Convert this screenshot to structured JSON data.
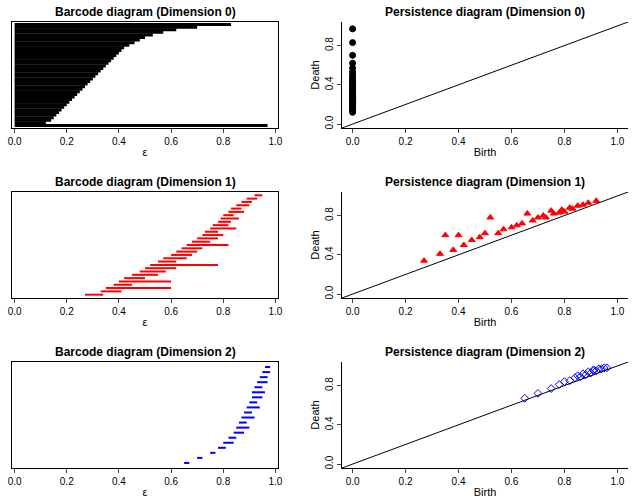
{
  "chart_data": [
    {
      "type": "barcode",
      "title": "Barcode diagram (Dimension 0)",
      "x_label": "ε",
      "color": "#000000",
      "tick_labels": "x",
      "x": [
        0,
        0,
        0,
        0,
        0,
        0,
        0,
        0,
        0,
        0,
        0,
        0,
        0,
        0,
        0,
        0,
        0,
        0,
        0,
        0,
        0,
        0,
        0,
        0,
        0,
        0,
        0,
        0,
        0,
        0,
        0,
        0,
        0,
        0,
        0,
        0,
        0,
        0,
        0,
        0
      ],
      "values": [
        0.97,
        0.12,
        0.14,
        0.15,
        0.16,
        0.17,
        0.18,
        0.19,
        0.2,
        0.21,
        0.22,
        0.23,
        0.24,
        0.25,
        0.26,
        0.27,
        0.28,
        0.29,
        0.3,
        0.31,
        0.32,
        0.33,
        0.34,
        0.35,
        0.36,
        0.37,
        0.38,
        0.39,
        0.4,
        0.41,
        0.42,
        0.44,
        0.46,
        0.48,
        0.5,
        0.53,
        0.57,
        0.62,
        0.7,
        0.83
      ],
      "xlim": [
        -0.01,
        1.01
      ],
      "xticks": [
        {
          "value": 0,
          "label": "0.0"
        },
        {
          "value": 0.2,
          "label": "0.2"
        },
        {
          "value": 0.4,
          "label": "0.4"
        },
        {
          "value": 0.6,
          "label": "0.6"
        },
        {
          "value": 0.8,
          "label": "0.8"
        },
        {
          "value": 1,
          "label": "1.0"
        }
      ]
    },
    {
      "type": "scatter",
      "title": "Persistence diagram (Dimension 0)",
      "x_label": "Birth",
      "y_label": "Death",
      "color": "#000000",
      "marker": "circle",
      "x": [
        0,
        0,
        0,
        0,
        0,
        0,
        0,
        0,
        0,
        0,
        0,
        0,
        0,
        0,
        0,
        0,
        0,
        0,
        0,
        0,
        0,
        0,
        0,
        0,
        0,
        0,
        0,
        0,
        0,
        0,
        0,
        0,
        0,
        0,
        0,
        0,
        0,
        0,
        0,
        0
      ],
      "values": [
        0.97,
        0.12,
        0.14,
        0.15,
        0.16,
        0.17,
        0.18,
        0.19,
        0.2,
        0.21,
        0.22,
        0.23,
        0.24,
        0.25,
        0.26,
        0.27,
        0.28,
        0.29,
        0.3,
        0.31,
        0.32,
        0.33,
        0.34,
        0.35,
        0.36,
        0.37,
        0.38,
        0.39,
        0.4,
        0.41,
        0.42,
        0.44,
        0.46,
        0.48,
        0.5,
        0.53,
        0.57,
        0.62,
        0.7,
        0.83
      ],
      "xlim": [
        -0.04,
        1.04
      ],
      "ylim": [
        -0.04,
        1.04
      ],
      "xticks": [
        {
          "value": 0,
          "label": "0.0"
        },
        {
          "value": 0.2,
          "label": "0.2"
        },
        {
          "value": 0.4,
          "label": "0.4"
        },
        {
          "value": 0.6,
          "label": "0.6"
        },
        {
          "value": 0.8,
          "label": "0.8"
        },
        {
          "value": 1,
          "label": "1.0"
        }
      ],
      "yticks": [
        {
          "value": 0,
          "label": "0.0"
        },
        {
          "value": 0.4,
          "label": "0.4"
        },
        {
          "value": 0.8,
          "label": "0.8"
        }
      ]
    },
    {
      "type": "barcode",
      "title": "Barcode diagram (Dimension 1)",
      "x_label": "ε",
      "color": "#ff0000",
      "tick_labels": "x",
      "x": [
        0.27,
        0.33,
        0.35,
        0.38,
        0.4,
        0.42,
        0.45,
        0.48,
        0.5,
        0.52,
        0.55,
        0.57,
        0.6,
        0.62,
        0.64,
        0.66,
        0.68,
        0.7,
        0.72,
        0.73,
        0.75,
        0.76,
        0.78,
        0.79,
        0.8,
        0.82,
        0.83,
        0.85,
        0.87,
        0.89,
        0.92
      ],
      "values": [
        0.34,
        0.41,
        0.6,
        0.45,
        0.6,
        0.5,
        0.55,
        0.58,
        0.62,
        0.78,
        0.62,
        0.66,
        0.68,
        0.7,
        0.72,
        0.82,
        0.75,
        0.78,
        0.8,
        0.78,
        0.85,
        0.82,
        0.83,
        0.86,
        0.84,
        0.88,
        0.87,
        0.9,
        0.91,
        0.93,
        0.95
      ],
      "xlim": [
        -0.01,
        1.01
      ],
      "xticks": [
        {
          "value": 0,
          "label": "0.0"
        },
        {
          "value": 0.2,
          "label": "0.2"
        },
        {
          "value": 0.4,
          "label": "0.4"
        },
        {
          "value": 0.6,
          "label": "0.6"
        },
        {
          "value": 0.8,
          "label": "0.8"
        },
        {
          "value": 1,
          "label": "1.0"
        }
      ]
    },
    {
      "type": "scatter",
      "title": "Persistence diagram (Dimension 1)",
      "x_label": "Birth",
      "y_label": "Death",
      "color": "#ff0000",
      "marker": "triangle-up",
      "x": [
        0.27,
        0.33,
        0.35,
        0.38,
        0.4,
        0.42,
        0.45,
        0.48,
        0.5,
        0.52,
        0.55,
        0.57,
        0.6,
        0.62,
        0.64,
        0.66,
        0.68,
        0.7,
        0.72,
        0.73,
        0.75,
        0.76,
        0.78,
        0.79,
        0.8,
        0.82,
        0.83,
        0.85,
        0.87,
        0.89,
        0.92
      ],
      "values": [
        0.34,
        0.41,
        0.6,
        0.45,
        0.6,
        0.5,
        0.55,
        0.58,
        0.62,
        0.78,
        0.62,
        0.66,
        0.68,
        0.7,
        0.72,
        0.82,
        0.75,
        0.78,
        0.8,
        0.78,
        0.85,
        0.82,
        0.83,
        0.86,
        0.84,
        0.88,
        0.87,
        0.9,
        0.91,
        0.93,
        0.95
      ],
      "xlim": [
        -0.04,
        1.04
      ],
      "ylim": [
        -0.04,
        1.04
      ],
      "xticks": [
        {
          "value": 0,
          "label": "0.0"
        },
        {
          "value": 0.2,
          "label": "0.2"
        },
        {
          "value": 0.4,
          "label": "0.4"
        },
        {
          "value": 0.6,
          "label": "0.6"
        },
        {
          "value": 0.8,
          "label": "0.8"
        },
        {
          "value": 1,
          "label": "1.0"
        }
      ],
      "yticks": [
        {
          "value": 0,
          "label": "0.0"
        },
        {
          "value": 0.4,
          "label": "0.4"
        },
        {
          "value": 0.8,
          "label": "0.8"
        }
      ]
    },
    {
      "type": "barcode",
      "title": "Barcode diagram (Dimension 2)",
      "x_label": "ε",
      "color": "#0000ff",
      "tick_labels": "x",
      "x": [
        0.65,
        0.7,
        0.75,
        0.78,
        0.8,
        0.82,
        0.84,
        0.85,
        0.86,
        0.87,
        0.88,
        0.89,
        0.9,
        0.91,
        0.91,
        0.92,
        0.93,
        0.94,
        0.95,
        0.96
      ],
      "values": [
        0.67,
        0.72,
        0.77,
        0.81,
        0.84,
        0.85,
        0.88,
        0.9,
        0.89,
        0.92,
        0.91,
        0.94,
        0.93,
        0.95,
        0.96,
        0.95,
        0.97,
        0.97,
        0.98,
        0.98
      ],
      "xlim": [
        -0.01,
        1.01
      ],
      "xticks": [
        {
          "value": 0,
          "label": "0.0"
        },
        {
          "value": 0.2,
          "label": "0.2"
        },
        {
          "value": 0.4,
          "label": "0.4"
        },
        {
          "value": 0.6,
          "label": "0.6"
        },
        {
          "value": 0.8,
          "label": "0.8"
        },
        {
          "value": 1,
          "label": "1.0"
        }
      ]
    },
    {
      "type": "scatter",
      "title": "Persistence diagram (Dimension 2)",
      "x_label": "Birth",
      "y_label": "Death",
      "color": "#0000ff",
      "marker": "diamond-open",
      "x": [
        0.65,
        0.7,
        0.75,
        0.78,
        0.8,
        0.82,
        0.84,
        0.85,
        0.86,
        0.87,
        0.88,
        0.89,
        0.9,
        0.91,
        0.91,
        0.92,
        0.93,
        0.94,
        0.95,
        0.96
      ],
      "values": [
        0.67,
        0.72,
        0.77,
        0.81,
        0.84,
        0.85,
        0.88,
        0.9,
        0.89,
        0.92,
        0.91,
        0.94,
        0.93,
        0.95,
        0.96,
        0.95,
        0.97,
        0.97,
        0.98,
        0.98
      ],
      "xlim": [
        -0.04,
        1.04
      ],
      "ylim": [
        -0.04,
        1.04
      ],
      "xticks": [
        {
          "value": 0,
          "label": "0.0"
        },
        {
          "value": 0.2,
          "label": "0.2"
        },
        {
          "value": 0.4,
          "label": "0.4"
        },
        {
          "value": 0.6,
          "label": "0.6"
        },
        {
          "value": 0.8,
          "label": "0.8"
        },
        {
          "value": 1,
          "label": "1.0"
        }
      ],
      "yticks": [
        {
          "value": 0,
          "label": "0.0"
        },
        {
          "value": 0.4,
          "label": "0.4"
        },
        {
          "value": 0.8,
          "label": "0.8"
        }
      ]
    }
  ]
}
